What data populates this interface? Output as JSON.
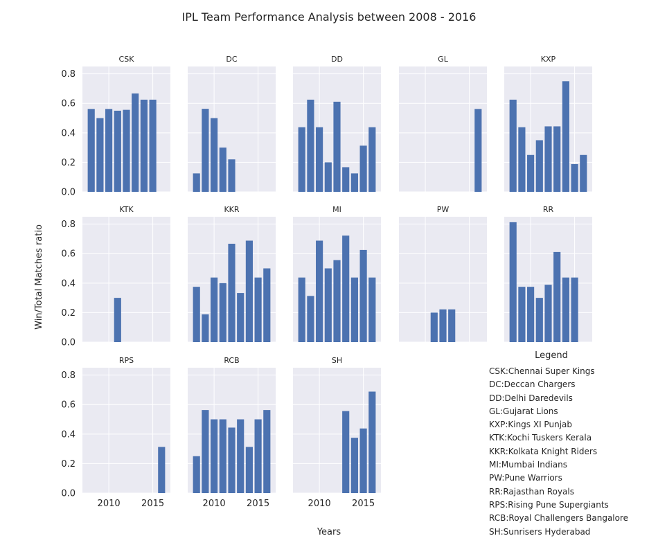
{
  "chart_data": {
    "type": "bar",
    "title": "IPL Team Performance Analysis between 2008 - 2016",
    "xlabel": "Years",
    "ylabel": "Win/Total Matches ratio",
    "xlim": [
      2007,
      2017
    ],
    "ylim": [
      0,
      0.85
    ],
    "x_ticks": [
      2010,
      2015
    ],
    "y_ticks": [
      0.0,
      0.2,
      0.4,
      0.6,
      0.8
    ],
    "grid": true,
    "bar_color": "#4c72b0",
    "background": "#eaeaf2",
    "panels": [
      {
        "team": "CSK",
        "years": [
          2008,
          2009,
          2010,
          2011,
          2012,
          2013,
          2014,
          2015
        ],
        "values": [
          0.562,
          0.5,
          0.562,
          0.55,
          0.556,
          0.667,
          0.625,
          0.625
        ]
      },
      {
        "team": "DC",
        "years": [
          2008,
          2009,
          2010,
          2011,
          2012
        ],
        "values": [
          0.125,
          0.563,
          0.5,
          0.3,
          0.22
        ]
      },
      {
        "team": "DD",
        "years": [
          2008,
          2009,
          2010,
          2011,
          2012,
          2013,
          2014,
          2015,
          2016
        ],
        "values": [
          0.438,
          0.625,
          0.438,
          0.2,
          0.611,
          0.167,
          0.125,
          0.313,
          0.438
        ]
      },
      {
        "team": "GL",
        "years": [
          2016
        ],
        "values": [
          0.562
        ]
      },
      {
        "team": "KXP",
        "years": [
          2008,
          2009,
          2010,
          2011,
          2012,
          2013,
          2014,
          2015,
          2016
        ],
        "values": [
          0.625,
          0.438,
          0.25,
          0.35,
          0.444,
          0.444,
          0.75,
          0.188,
          0.25
        ]
      },
      {
        "team": "KTK",
        "years": [
          2011
        ],
        "values": [
          0.3
        ]
      },
      {
        "team": "KKR",
        "years": [
          2008,
          2009,
          2010,
          2011,
          2012,
          2013,
          2014,
          2015,
          2016
        ],
        "values": [
          0.375,
          0.188,
          0.438,
          0.4,
          0.667,
          0.333,
          0.688,
          0.438,
          0.5
        ]
      },
      {
        "team": "MI",
        "years": [
          2008,
          2009,
          2010,
          2011,
          2012,
          2013,
          2014,
          2015,
          2016
        ],
        "values": [
          0.438,
          0.313,
          0.688,
          0.5,
          0.556,
          0.722,
          0.438,
          0.625,
          0.438
        ]
      },
      {
        "team": "PW",
        "years": [
          2011,
          2012,
          2013
        ],
        "values": [
          0.2,
          0.222,
          0.222
        ]
      },
      {
        "team": "RR",
        "years": [
          2008,
          2009,
          2010,
          2011,
          2012,
          2013,
          2014,
          2015
        ],
        "values": [
          0.813,
          0.375,
          0.375,
          0.3,
          0.389,
          0.611,
          0.438,
          0.438
        ]
      },
      {
        "team": "RPS",
        "years": [
          2016
        ],
        "values": [
          0.313
        ]
      },
      {
        "team": "RCB",
        "years": [
          2008,
          2009,
          2010,
          2011,
          2012,
          2013,
          2014,
          2015,
          2016
        ],
        "values": [
          0.25,
          0.563,
          0.5,
          0.5,
          0.444,
          0.5,
          0.313,
          0.5,
          0.563
        ]
      },
      {
        "team": "SH",
        "years": [
          2013,
          2014,
          2015,
          2016
        ],
        "values": [
          0.556,
          0.375,
          0.438,
          0.688
        ]
      }
    ],
    "legend": {
      "title": "Legend",
      "items": [
        "CSK:Chennai Super Kings",
        "DC:Deccan Chargers",
        "DD:Delhi Daredevils",
        "GL:Gujarat Lions",
        "KXP:Kings XI Punjab",
        "KTK:Kochi Tuskers Kerala",
        "KKR:Kolkata Knight Riders",
        "MI:Mumbai Indians",
        "PW:Pune Warriors",
        "RR:Rajasthan Royals",
        "RPS:Rising Pune Supergiants",
        "RCB:Royal Challengers Bangalore",
        "SH:Sunrisers Hyderabad"
      ]
    }
  }
}
